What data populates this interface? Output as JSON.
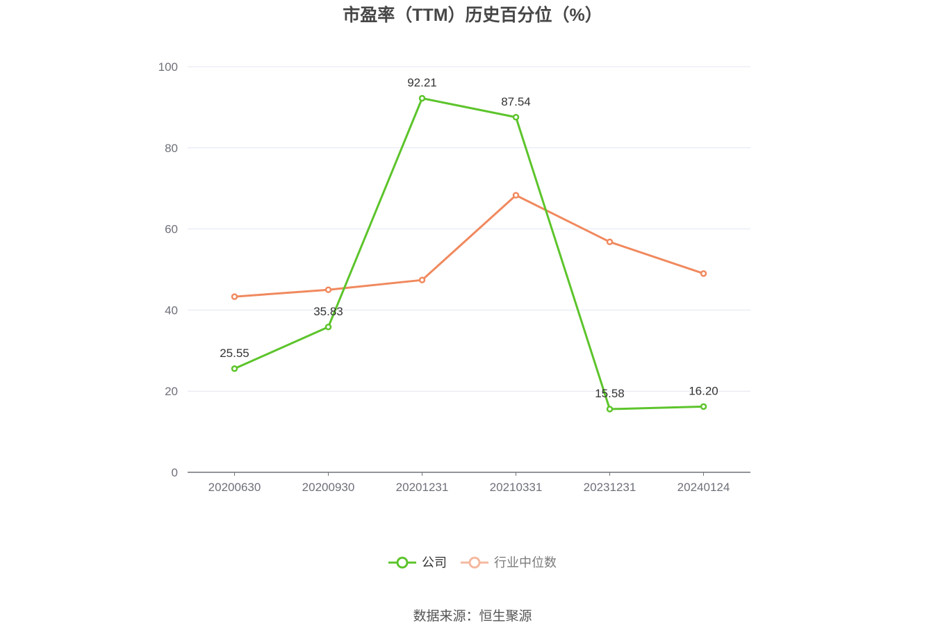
{
  "chart_data": {
    "type": "line",
    "title": "市盈率（TTM）历史百分位（%）",
    "categories": [
      "20200630",
      "20200930",
      "20201231",
      "20210331",
      "20231231",
      "20240124"
    ],
    "ylim": [
      0,
      100
    ],
    "yticks": [
      0,
      20,
      40,
      60,
      80,
      100
    ],
    "grid": true,
    "legend": "bottom",
    "series": [
      {
        "name": "公司",
        "color": "#5cc42b",
        "values": [
          25.55,
          35.83,
          92.21,
          87.54,
          15.58,
          16.2
        ],
        "data_labels": [
          "25.55",
          "35.83",
          "92.21",
          "87.54",
          "15.58",
          "16.20"
        ]
      },
      {
        "name": "行业中位数",
        "color": "#f0895e",
        "values": [
          43.3,
          45.0,
          47.4,
          68.3,
          56.8,
          49.0
        ]
      }
    ]
  },
  "source": "数据来源：恒生聚源"
}
